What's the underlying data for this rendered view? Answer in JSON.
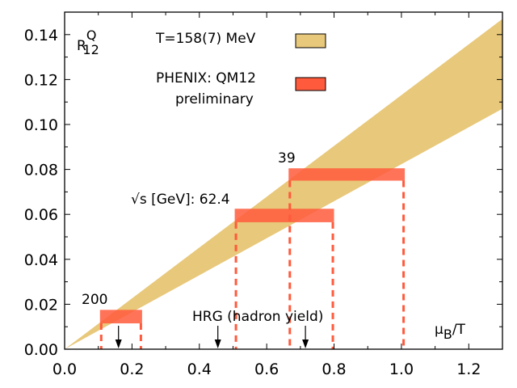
{
  "chart_data": {
    "type": "area",
    "title": "",
    "xlabel": "μ",
    "xlabel_sub": "B",
    "xlabel_suffix": "/T",
    "ylabel": "R",
    "ylabel_sup": "Q",
    "ylabel_sub": "12",
    "xlim": [
      0.0,
      1.3
    ],
    "ylim": [
      0.0,
      0.15
    ],
    "xticks": [
      0.0,
      0.2,
      0.4,
      0.6,
      0.8,
      1.0,
      1.2
    ],
    "xtick_labels": [
      "0.0",
      "0.2",
      "0.4",
      "0.6",
      "0.8",
      "1.0",
      "1.2"
    ],
    "yticks": [
      0.0,
      0.02,
      0.04,
      0.06,
      0.08,
      0.1,
      0.12,
      0.14
    ],
    "ytick_labels": [
      "0.00",
      "0.02",
      "0.04",
      "0.06",
      "0.08",
      "0.10",
      "0.12",
      "0.14"
    ],
    "band": {
      "name": "T=158(7) MeV",
      "color": "#e8c87a",
      "x": [
        0.0,
        1.3
      ],
      "upper": [
        0.0,
        0.147
      ],
      "lower": [
        0.0,
        0.107
      ]
    },
    "boxes_name": "PHENIX: QM12 preliminary",
    "boxes_color": "#ff5a3c",
    "boxes": [
      {
        "label": "200",
        "x_low": 0.105,
        "x_high": 0.23,
        "y_low": 0.0115,
        "y_high": 0.0175
      },
      {
        "label": "62.4",
        "x_low": 0.505,
        "x_high": 0.8,
        "y_low": 0.0565,
        "y_high": 0.0625
      },
      {
        "label": "39",
        "x_low": 0.665,
        "x_high": 1.01,
        "y_low": 0.075,
        "y_high": 0.0805
      }
    ],
    "hrg_label": "HRG (hadron yield)",
    "hrg_arrows": [
      0.16,
      0.455,
      0.715
    ],
    "sqrt_s_label": "√s [GeV]: 62.4",
    "label_200": "200",
    "label_39": "39"
  },
  "legend": {
    "band_label": "T=158(7) MeV",
    "box_label_line1": "PHENIX: QM12",
    "box_label_line2": "preliminary"
  }
}
